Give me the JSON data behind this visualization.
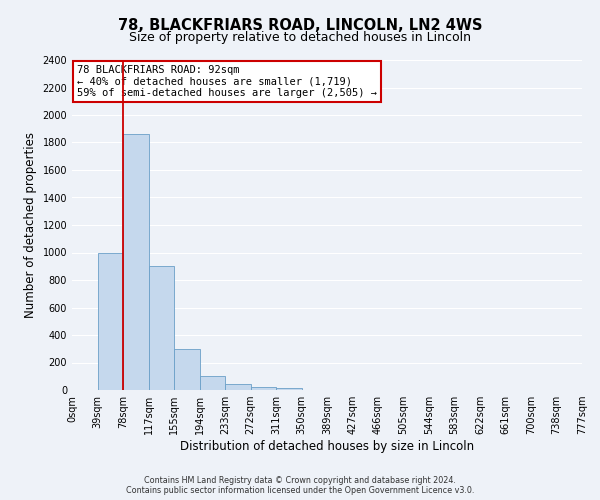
{
  "title": "78, BLACKFRIARS ROAD, LINCOLN, LN2 4WS",
  "subtitle": "Size of property relative to detached houses in Lincoln",
  "xlabel": "Distribution of detached houses by size in Lincoln",
  "ylabel": "Number of detached properties",
  "bar_values": [
    0,
    1000,
    1860,
    900,
    300,
    100,
    45,
    20,
    15,
    0,
    0,
    0,
    0,
    0,
    0,
    0,
    0,
    0,
    0,
    0
  ],
  "bin_labels": [
    "0sqm",
    "39sqm",
    "78sqm",
    "117sqm",
    "155sqm",
    "194sqm",
    "233sqm",
    "272sqm",
    "311sqm",
    "350sqm",
    "389sqm",
    "427sqm",
    "466sqm",
    "505sqm",
    "544sqm",
    "583sqm",
    "622sqm",
    "661sqm",
    "700sqm",
    "738sqm",
    "777sqm"
  ],
  "bar_color": "#c5d8ed",
  "bar_edge_color": "#6a9fc8",
  "vline_x": 2,
  "vline_color": "#cc0000",
  "ylim": [
    0,
    2400
  ],
  "yticks": [
    0,
    200,
    400,
    600,
    800,
    1000,
    1200,
    1400,
    1600,
    1800,
    2000,
    2200,
    2400
  ],
  "annotation_title": "78 BLACKFRIARS ROAD: 92sqm",
  "annotation_line1": "← 40% of detached houses are smaller (1,719)",
  "annotation_line2": "59% of semi-detached houses are larger (2,505) →",
  "annotation_box_color": "#ffffff",
  "annotation_box_edge_color": "#cc0000",
  "footer_line1": "Contains HM Land Registry data © Crown copyright and database right 2024.",
  "footer_line2": "Contains public sector information licensed under the Open Government Licence v3.0.",
  "background_color": "#eef2f8",
  "grid_color": "#ffffff",
  "title_fontsize": 10.5,
  "subtitle_fontsize": 9,
  "tick_fontsize": 7,
  "label_fontsize": 8.5,
  "annotation_fontsize": 7.5,
  "footer_fontsize": 5.8
}
